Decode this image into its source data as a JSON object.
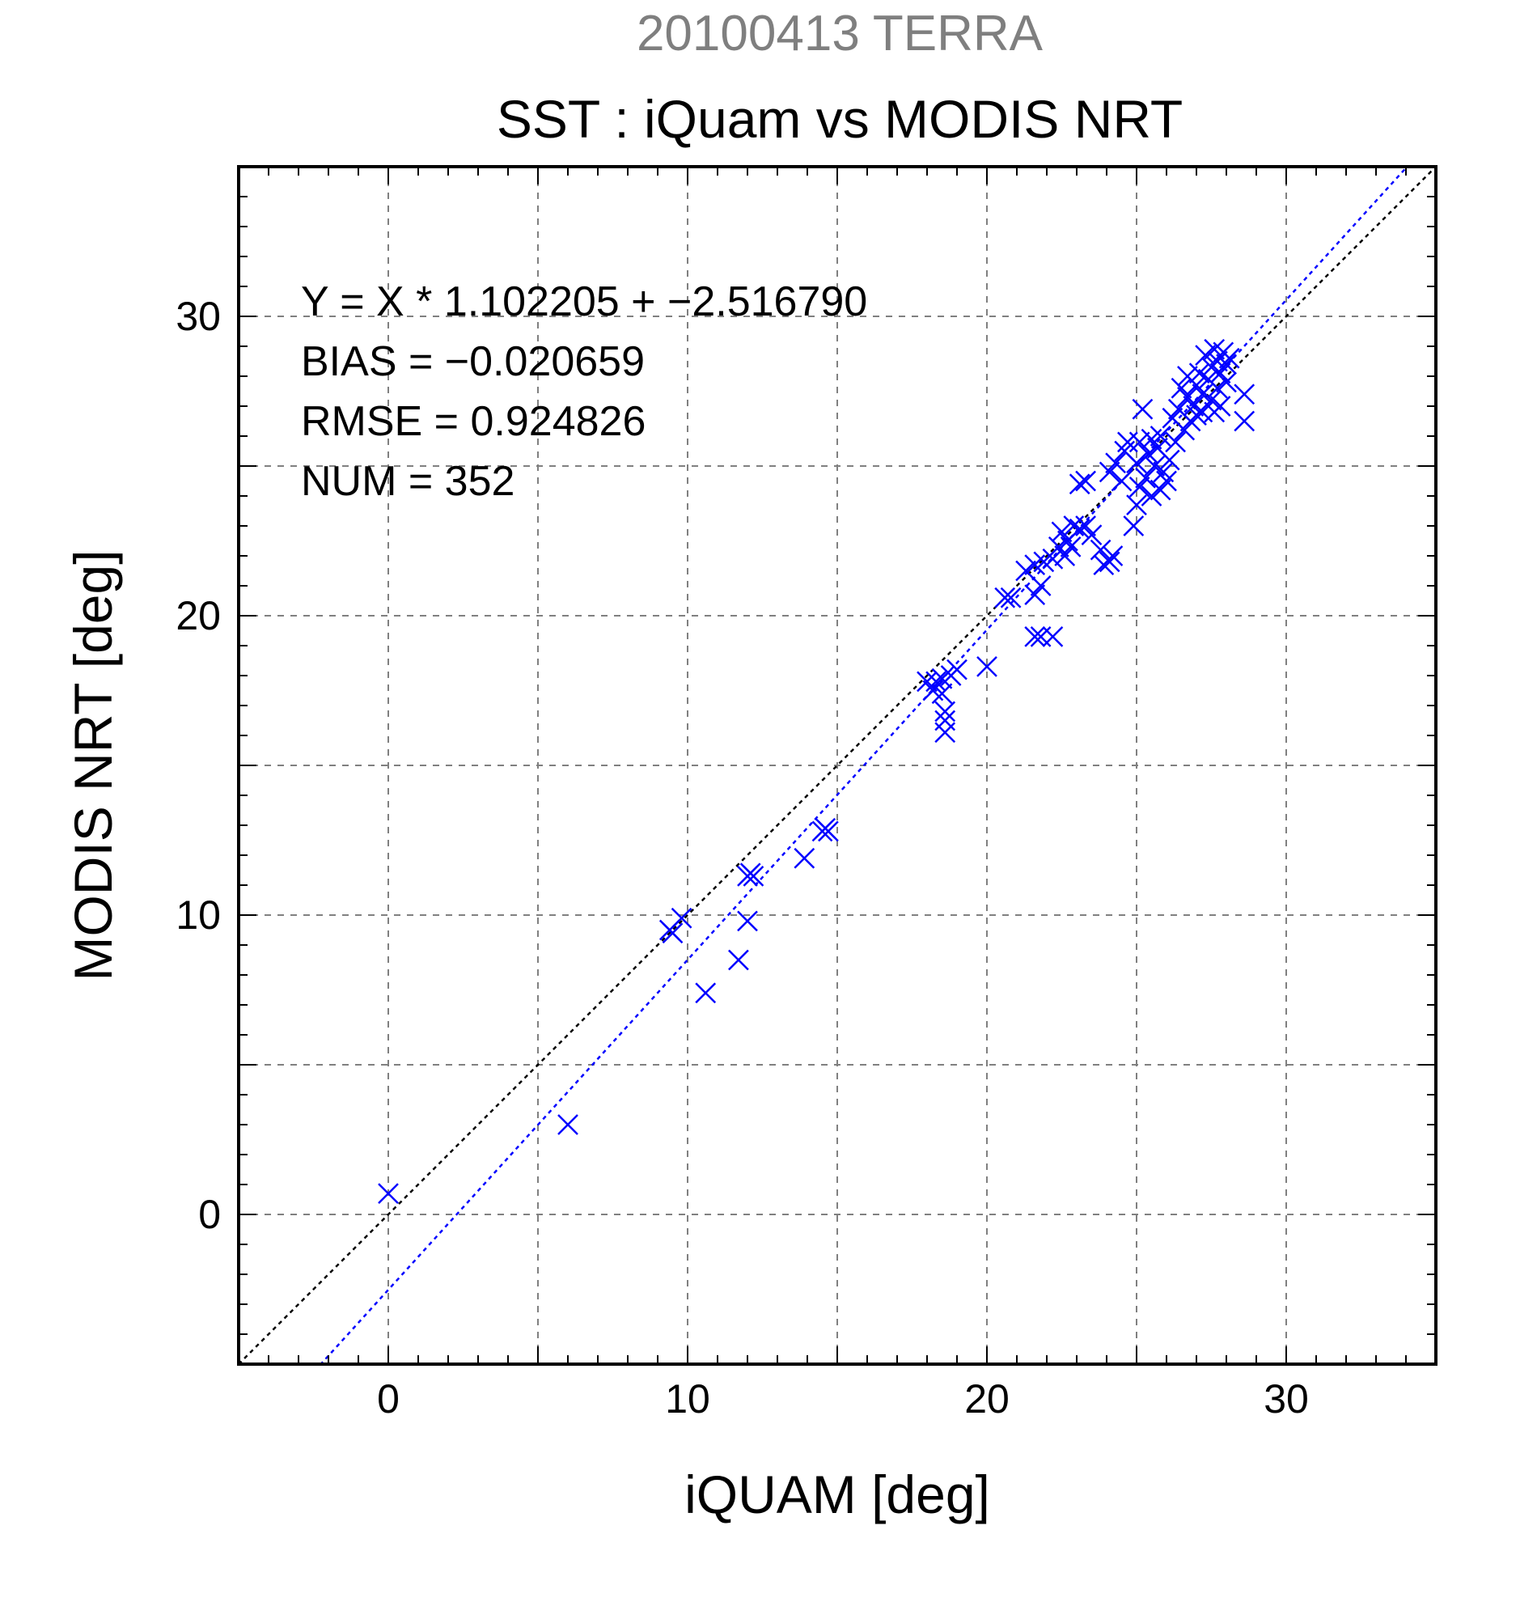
{
  "chart_data": {
    "type": "scatter",
    "title": "20100413 TERRA",
    "subtitle": "SST : iQuam vs MODIS NRT",
    "xlabel": "iQUAM [deg]",
    "ylabel": "MODIS NRT [deg]",
    "xlim": [
      -5,
      35
    ],
    "ylim": [
      -5,
      35
    ],
    "xticks": [
      0,
      10,
      20,
      30
    ],
    "yticks": [
      0,
      10,
      20,
      30
    ],
    "grid": true,
    "marker": "x",
    "point_color": "#0000ff",
    "fit_color": "#0000ff",
    "reference_color": "#000000",
    "annotations": [
      "Y = X * 1.102205 + −2.516790",
      "BIAS = −0.020659",
      "RMSE = 0.924826",
      "NUM = 352"
    ],
    "fit_line": {
      "slope": 1.102205,
      "intercept": -2.51679
    },
    "reference_line": {
      "slope": 1,
      "intercept": 0
    },
    "points": [
      [
        0.0,
        0.7
      ],
      [
        6.0,
        3.0
      ],
      [
        9.4,
        9.5
      ],
      [
        9.5,
        9.4
      ],
      [
        9.8,
        9.9
      ],
      [
        10.6,
        7.4
      ],
      [
        11.7,
        8.5
      ],
      [
        12.0,
        9.8
      ],
      [
        12.0,
        11.3
      ],
      [
        12.2,
        11.3
      ],
      [
        12.1,
        11.4
      ],
      [
        13.9,
        11.9
      ],
      [
        14.5,
        12.8
      ],
      [
        14.6,
        12.9
      ],
      [
        14.7,
        12.8
      ],
      [
        18.0,
        17.8
      ],
      [
        18.2,
        17.5
      ],
      [
        18.3,
        17.8
      ],
      [
        18.5,
        17.9
      ],
      [
        18.5,
        17.4
      ],
      [
        18.6,
        16.8
      ],
      [
        18.6,
        16.5
      ],
      [
        18.6,
        16.1
      ],
      [
        18.8,
        18.0
      ],
      [
        19.0,
        18.2
      ],
      [
        20.0,
        18.3
      ],
      [
        20.6,
        20.6
      ],
      [
        20.8,
        20.6
      ],
      [
        21.6,
        19.3
      ],
      [
        21.8,
        19.3
      ],
      [
        22.2,
        19.3
      ],
      [
        21.6,
        20.7
      ],
      [
        21.8,
        21.0
      ],
      [
        21.3,
        21.5
      ],
      [
        21.6,
        21.7
      ],
      [
        21.9,
        21.8
      ],
      [
        22.2,
        21.9
      ],
      [
        22.4,
        22.3
      ],
      [
        22.5,
        22.8
      ],
      [
        22.7,
        22.5
      ],
      [
        22.9,
        23.0
      ],
      [
        23.1,
        22.9
      ],
      [
        23.3,
        23.0
      ],
      [
        22.6,
        22.0
      ],
      [
        22.8,
        22.3
      ],
      [
        23.1,
        24.4
      ],
      [
        23.3,
        24.5
      ],
      [
        23.5,
        22.7
      ],
      [
        23.8,
        22.2
      ],
      [
        23.9,
        21.7
      ],
      [
        24.1,
        21.8
      ],
      [
        24.2,
        22.0
      ],
      [
        24.1,
        24.8
      ],
      [
        24.3,
        25.1
      ],
      [
        24.5,
        24.5
      ],
      [
        24.6,
        25.5
      ],
      [
        24.7,
        25.8
      ],
      [
        24.9,
        23.0
      ],
      [
        25.0,
        23.7
      ],
      [
        25.1,
        24.3
      ],
      [
        25.0,
        25.1
      ],
      [
        25.1,
        25.8
      ],
      [
        25.2,
        26.9
      ],
      [
        25.3,
        24.6
      ],
      [
        25.4,
        25.4
      ],
      [
        25.5,
        24.0
      ],
      [
        25.5,
        25.9
      ],
      [
        25.6,
        25.0
      ],
      [
        25.8,
        24.2
      ],
      [
        25.7,
        25.6
      ],
      [
        25.9,
        24.8
      ],
      [
        25.8,
        26.0
      ],
      [
        26.0,
        24.5
      ],
      [
        26.1,
        25.2
      ],
      [
        26.2,
        26.6
      ],
      [
        26.3,
        25.8
      ],
      [
        26.4,
        26.9
      ],
      [
        26.5,
        27.6
      ],
      [
        26.6,
        26.2
      ],
      [
        26.7,
        27.3
      ],
      [
        26.7,
        28.0
      ],
      [
        26.8,
        26.5
      ],
      [
        26.9,
        27.0
      ],
      [
        27.0,
        26.7
      ],
      [
        27.0,
        27.7
      ],
      [
        27.1,
        28.1
      ],
      [
        27.2,
        26.8
      ],
      [
        27.2,
        27.4
      ],
      [
        27.3,
        28.7
      ],
      [
        27.4,
        27.9
      ],
      [
        27.5,
        27.2
      ],
      [
        27.5,
        28.3
      ],
      [
        27.6,
        26.8
      ],
      [
        27.6,
        28.9
      ],
      [
        27.7,
        27.6
      ],
      [
        27.7,
        28.5
      ],
      [
        27.8,
        28.1
      ],
      [
        27.8,
        27.0
      ],
      [
        27.9,
        28.8
      ],
      [
        28.0,
        28.4
      ],
      [
        28.0,
        27.8
      ],
      [
        28.1,
        28.6
      ],
      [
        28.6,
        27.4
      ],
      [
        28.6,
        26.5
      ]
    ]
  }
}
